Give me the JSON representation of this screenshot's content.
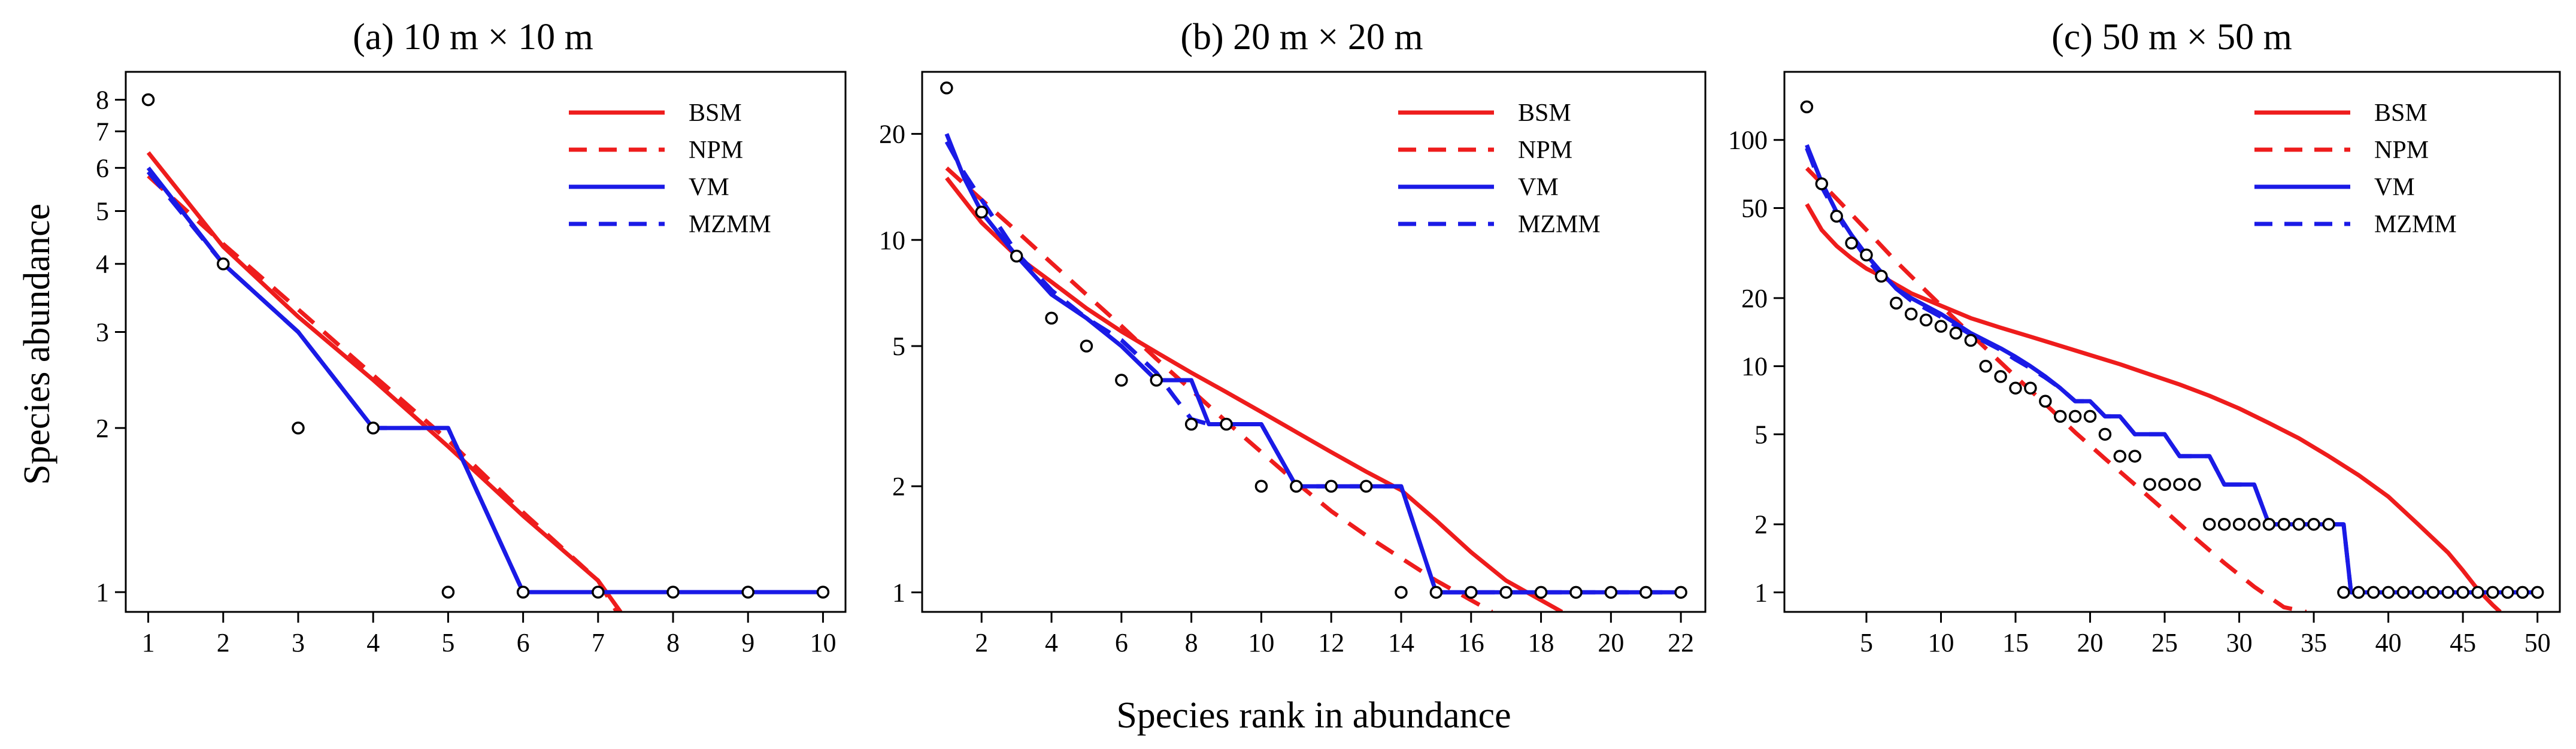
{
  "xlabel": "Species rank in abundance",
  "ylabel": "Species abundance",
  "colors": {
    "red": "#ee1c1c",
    "blue": "#1a1ae6",
    "black": "#000000"
  },
  "legend": [
    {
      "label": "BSM",
      "color": "#ee1c1c",
      "dash": false
    },
    {
      "label": "NPM",
      "color": "#ee1c1c",
      "dash": true
    },
    {
      "label": "VM",
      "color": "#1a1ae6",
      "dash": false
    },
    {
      "label": "MZMM",
      "color": "#1a1ae6",
      "dash": true
    }
  ],
  "chart_data": [
    {
      "type": "line",
      "title": "(a) 10 m × 10 m",
      "xlabel": "Species rank in abundance",
      "ylabel": "Species abundance",
      "yscale": "log",
      "xlim": [
        0.7,
        10.3
      ],
      "ylim": [
        0.92,
        9.0
      ],
      "xticks": [
        1,
        2,
        3,
        4,
        5,
        6,
        7,
        8,
        9,
        10
      ],
      "yticks": [
        1,
        2,
        3,
        4,
        5,
        6,
        7,
        8
      ],
      "observed": {
        "x": [
          1,
          2,
          3,
          4,
          5,
          6,
          7,
          8,
          9,
          10
        ],
        "y": [
          8,
          4,
          2,
          2,
          1,
          1,
          1,
          1,
          1,
          1
        ]
      },
      "series": [
        {
          "name": "BSM",
          "x": [
            1,
            2,
            3,
            4,
            5,
            6,
            7,
            7.3
          ],
          "y": [
            6.4,
            4.3,
            3.2,
            2.45,
            1.85,
            1.38,
            1.05,
            0.92
          ]
        },
        {
          "name": "NPM",
          "x": [
            1,
            2,
            3,
            4,
            5,
            6,
            7,
            7.25
          ],
          "y": [
            5.8,
            4.35,
            3.3,
            2.5,
            1.9,
            1.4,
            1.05,
            0.92
          ]
        },
        {
          "name": "VM",
          "x": [
            1,
            2,
            3,
            4,
            5,
            6,
            7,
            8,
            9,
            10
          ],
          "y": [
            6,
            4,
            3,
            2,
            2,
            1,
            1,
            1,
            1,
            1
          ]
        },
        {
          "name": "MZMM",
          "x": [
            1,
            2,
            3,
            4,
            5,
            6,
            7,
            8,
            9,
            10
          ],
          "y": [
            5.9,
            4,
            3,
            2,
            2,
            1,
            1,
            1,
            1,
            1
          ]
        }
      ]
    },
    {
      "type": "line",
      "title": "(b) 20 m × 20 m",
      "xlabel": "Species rank in abundance",
      "ylabel": "Species abundance",
      "yscale": "log",
      "xlim": [
        0.3,
        22.7
      ],
      "ylim": [
        0.88,
        30
      ],
      "xticks": [
        2,
        4,
        6,
        8,
        10,
        12,
        14,
        16,
        18,
        20,
        22
      ],
      "yticks": [
        1,
        2,
        5,
        10,
        20
      ],
      "observed": {
        "x": [
          1,
          2,
          3,
          4,
          5,
          6,
          7,
          8,
          9,
          10,
          11,
          12,
          13,
          14,
          15,
          16,
          17,
          18,
          19,
          20,
          21,
          22
        ],
        "y": [
          27,
          12,
          9,
          6,
          5,
          4,
          4,
          3,
          3,
          2,
          2,
          2,
          2,
          1,
          1,
          1,
          1,
          1,
          1,
          1,
          1,
          1
        ]
      },
      "series": [
        {
          "name": "BSM",
          "x": [
            1,
            2,
            3,
            4,
            5,
            6,
            7,
            8,
            9,
            10,
            11,
            12,
            13,
            14,
            15,
            16,
            17,
            18,
            18.6
          ],
          "y": [
            15,
            11.2,
            9,
            7.6,
            6.4,
            5.5,
            4.8,
            4.2,
            3.7,
            3.25,
            2.85,
            2.5,
            2.2,
            1.95,
            1.6,
            1.3,
            1.08,
            0.95,
            0.88
          ]
        },
        {
          "name": "NPM",
          "x": [
            1,
            2,
            3,
            4,
            5,
            6,
            7,
            8,
            9,
            10,
            11,
            12,
            13,
            14,
            15,
            16,
            16.6
          ],
          "y": [
            16,
            13,
            10.6,
            8.6,
            7,
            5.7,
            4.6,
            3.75,
            3.05,
            2.5,
            2.05,
            1.7,
            1.45,
            1.25,
            1.08,
            0.95,
            0.88
          ]
        },
        {
          "name": "VM",
          "x": [
            1,
            1.5,
            2,
            3,
            4,
            5,
            6,
            7,
            7.5,
            8,
            8.5,
            9,
            9.5,
            10,
            11,
            12,
            13,
            14,
            15,
            16,
            17,
            18,
            19,
            20,
            21,
            22
          ],
          "y": [
            20,
            15,
            12,
            9,
            7,
            6,
            5,
            4,
            4,
            4,
            3,
            3,
            3,
            3,
            2,
            2,
            2,
            2,
            1,
            1,
            1,
            1,
            1,
            1,
            1,
            1
          ]
        },
        {
          "name": "MZMM",
          "x": [
            1,
            1.5,
            2,
            3,
            4,
            5,
            6,
            7,
            7.5,
            8,
            8.5,
            9,
            9.5,
            10,
            11,
            12,
            13,
            14,
            15,
            16,
            17,
            18,
            19,
            20,
            21,
            22
          ],
          "y": [
            19,
            15.5,
            13,
            9.2,
            7.2,
            6,
            5.2,
            4.2,
            3.6,
            3.1,
            3,
            3,
            3,
            3,
            2,
            2,
            2,
            2,
            1,
            1,
            1,
            1,
            1,
            1,
            1,
            1
          ]
        }
      ]
    },
    {
      "type": "line",
      "title": "(c) 50 m × 50 m",
      "xlabel": "Species rank in abundance",
      "ylabel": "Species abundance",
      "yscale": "log",
      "xlim": [
        -0.5,
        51.5
      ],
      "ylim": [
        0.82,
        200
      ],
      "xticks": [
        5,
        10,
        15,
        20,
        25,
        30,
        35,
        40,
        45,
        50
      ],
      "yticks": [
        1,
        2,
        5,
        10,
        20,
        50,
        100
      ],
      "observed": {
        "x": [
          1,
          2,
          3,
          4,
          5,
          6,
          7,
          8,
          9,
          10,
          11,
          12,
          13,
          14,
          15,
          16,
          17,
          18,
          19,
          20,
          21,
          22,
          23,
          24,
          25,
          26,
          27,
          28,
          29,
          30,
          31,
          32,
          33,
          34,
          35,
          36,
          37,
          38,
          39,
          40,
          41,
          42,
          43,
          44,
          45,
          46,
          47,
          48,
          49,
          50
        ],
        "y": [
          140,
          64,
          46,
          35,
          31,
          25,
          19,
          17,
          16,
          15,
          14,
          13,
          10,
          9,
          8,
          8,
          7,
          6,
          6,
          6,
          5,
          4,
          4,
          3,
          3,
          3,
          3,
          2,
          2,
          2,
          2,
          2,
          2,
          2,
          2,
          2,
          1,
          1,
          1,
          1,
          1,
          1,
          1,
          1,
          1,
          1,
          1,
          1,
          1,
          1
        ]
      },
      "series": [
        {
          "name": "BSM",
          "x": [
            1,
            2,
            3,
            4,
            5,
            6,
            8,
            10,
            12,
            14,
            16,
            18,
            20,
            22,
            24,
            26,
            28,
            30,
            32,
            34,
            36,
            38,
            40,
            42,
            44,
            45,
            46,
            47,
            47.5
          ],
          "y": [
            52,
            40,
            34,
            30,
            27,
            25,
            21,
            18.5,
            16.3,
            14.8,
            13.5,
            12.3,
            11.2,
            10.2,
            9.2,
            8.3,
            7.4,
            6.5,
            5.6,
            4.8,
            4,
            3.3,
            2.65,
            2,
            1.5,
            1.25,
            1.03,
            0.88,
            0.82
          ]
        },
        {
          "name": "NPM",
          "x": [
            1,
            3,
            5,
            7,
            9,
            11,
            13,
            15,
            17,
            19,
            21,
            23,
            25,
            27,
            29,
            31,
            33,
            34.5
          ],
          "y": [
            75,
            55,
            40,
            29,
            21.5,
            16,
            12,
            9,
            6.8,
            5.1,
            3.9,
            3,
            2.3,
            1.75,
            1.35,
            1.06,
            0.86,
            0.82
          ]
        },
        {
          "name": "VM",
          "x": [
            1,
            2,
            3,
            4,
            5,
            6,
            7,
            8,
            10,
            12,
            14,
            15,
            16,
            17,
            18,
            19,
            20,
            21,
            22,
            23,
            24,
            25,
            26,
            27,
            28,
            29,
            30,
            31,
            32,
            33,
            34,
            35,
            36,
            37,
            37.5,
            38,
            39,
            40,
            41,
            42,
            43,
            44,
            45,
            46,
            47,
            48,
            49,
            50
          ],
          "y": [
            95,
            65,
            48,
            38,
            31,
            26,
            22,
            20,
            17,
            14,
            12,
            11,
            10,
            9,
            8,
            7,
            7,
            6,
            6,
            5,
            5,
            5,
            4,
            4,
            4,
            3,
            3,
            3,
            2,
            2,
            2,
            2,
            2,
            2,
            1,
            1,
            1,
            1,
            1,
            1,
            1,
            1,
            1,
            1,
            1,
            1,
            1,
            1
          ]
        },
        {
          "name": "MZMM",
          "x": [
            1,
            2,
            3,
            4,
            5,
            6,
            7,
            8,
            10,
            12,
            14,
            15,
            16,
            17,
            18,
            19,
            20,
            21,
            22,
            23,
            24,
            25,
            26,
            27,
            28,
            29,
            30,
            31,
            32,
            33,
            34,
            35,
            36,
            37,
            37.5,
            38,
            39,
            40,
            41,
            42,
            43,
            44,
            45,
            46,
            47,
            48,
            49,
            50
          ],
          "y": [
            92,
            62,
            47,
            37,
            30,
            25,
            22,
            19.5,
            16.5,
            13.8,
            11.8,
            10.7,
            9.8,
            8.9,
            8,
            7,
            7,
            6,
            6,
            5,
            5,
            5,
            4,
            4,
            4,
            3,
            3,
            3,
            2,
            2,
            2,
            2,
            2,
            2,
            1,
            1,
            1,
            1,
            1,
            1,
            1,
            1,
            1,
            1,
            1,
            1,
            1,
            1
          ]
        }
      ]
    }
  ]
}
